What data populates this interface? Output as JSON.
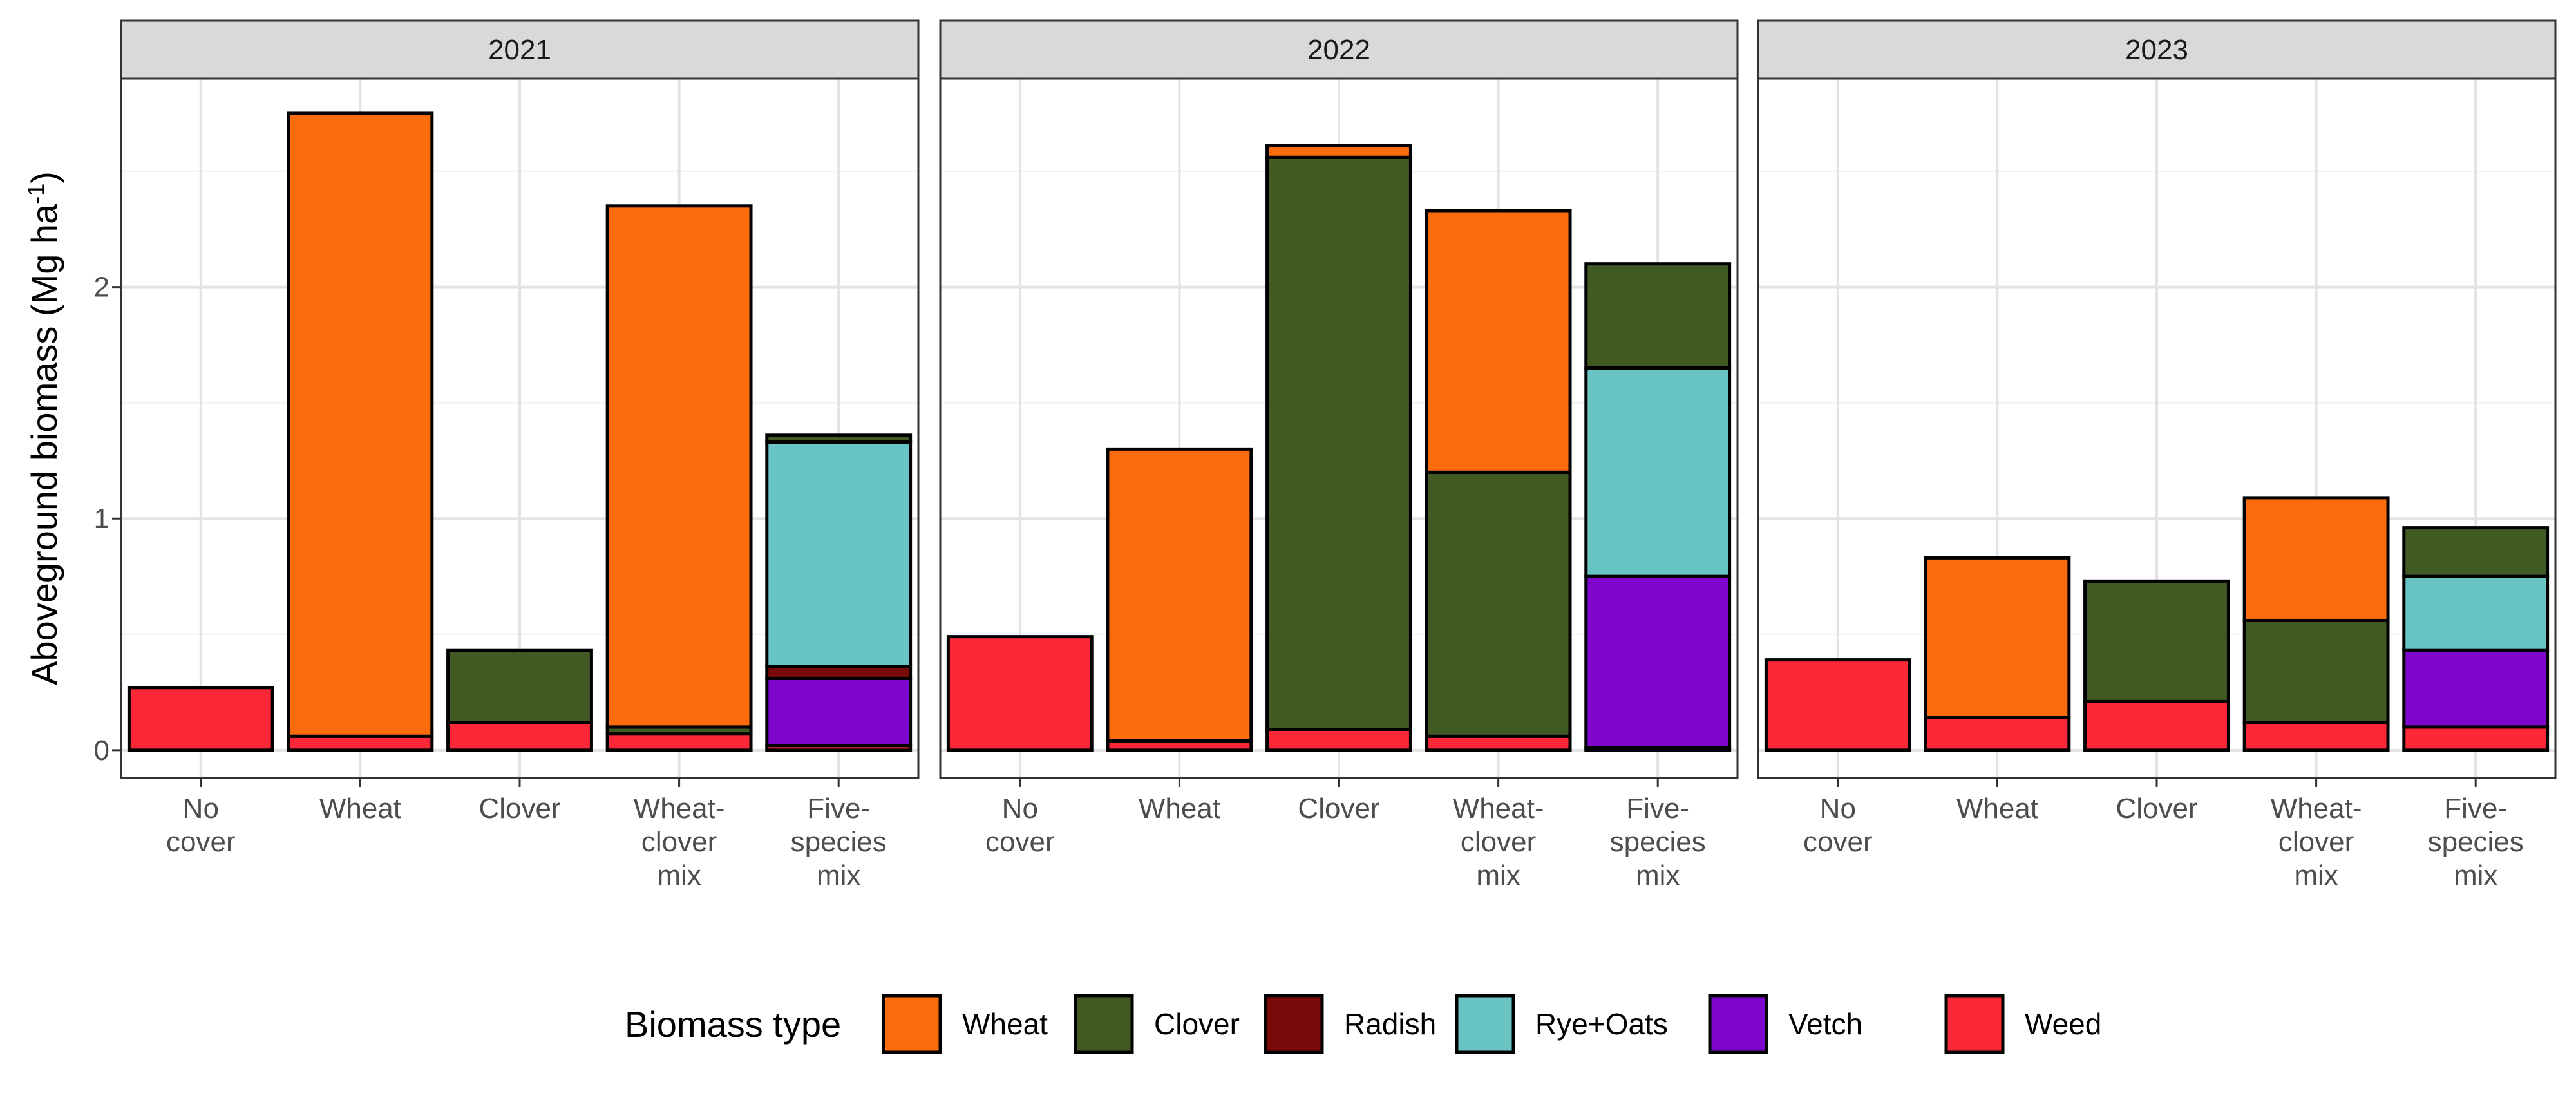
{
  "chart_data": {
    "type": "bar",
    "stacked": true,
    "facets": [
      "2021",
      "2022",
      "2023"
    ],
    "categories": [
      "No\ncover",
      "Wheat",
      "Clover",
      "Wheat-\nclover\nmix",
      "Five-\nspecies\nmix"
    ],
    "ylabel": "Aboveground biomass (Mg ha",
    "ylabel_superscript": "-1",
    "ylabel_suffix": ")",
    "ylim": [
      -0.12,
      2.9
    ],
    "yticks": [
      0,
      1,
      2
    ],
    "grid": true,
    "legend": {
      "title": "Biomass type",
      "position": "bottom",
      "items": [
        "Wheat",
        "Clover",
        "Radish",
        "Rye+Oats",
        "Vetch",
        "Weed"
      ]
    },
    "colors": {
      "Wheat": "#FC6B0C",
      "Clover": "#415A24",
      "Radish": "#7A0A0A",
      "Rye+Oats": "#69C4C4",
      "Vetch": "#7F06CC",
      "Weed": "#FC2837"
    },
    "stack_order_bottom_to_top": [
      "Weed",
      "Vetch",
      "Radish",
      "Rye+Oats",
      "Clover",
      "Wheat"
    ],
    "panels": [
      {
        "facet": "2021",
        "bars": [
          {
            "Weed": 0.27
          },
          {
            "Weed": 0.06,
            "Wheat": 2.69
          },
          {
            "Weed": 0.12,
            "Clover": 0.31
          },
          {
            "Weed": 0.07,
            "Clover": 0.03,
            "Wheat": 2.25
          },
          {
            "Weed": 0.02,
            "Vetch": 0.29,
            "Rye+Oats": 0.97,
            "Radish": 0.05,
            "Clover": 0.03
          }
        ]
      },
      {
        "facet": "2022",
        "bars": [
          {
            "Weed": 0.49
          },
          {
            "Weed": 0.04,
            "Wheat": 1.26
          },
          {
            "Weed": 0.09,
            "Clover": 2.47,
            "Wheat": 0.05
          },
          {
            "Weed": 0.06,
            "Clover": 1.14,
            "Wheat": 1.13
          },
          {
            "Weed": 0.01,
            "Vetch": 0.74,
            "Rye+Oats": 0.9,
            "Clover": 0.45
          }
        ]
      },
      {
        "facet": "2023",
        "bars": [
          {
            "Weed": 0.39
          },
          {
            "Weed": 0.14,
            "Wheat": 0.69
          },
          {
            "Weed": 0.21,
            "Clover": 0.52
          },
          {
            "Weed": 0.12,
            "Clover": 0.44,
            "Wheat": 0.53
          },
          {
            "Weed": 0.1,
            "Vetch": 0.33,
            "Rye+Oats": 0.32,
            "Clover": 0.21
          }
        ]
      }
    ]
  }
}
